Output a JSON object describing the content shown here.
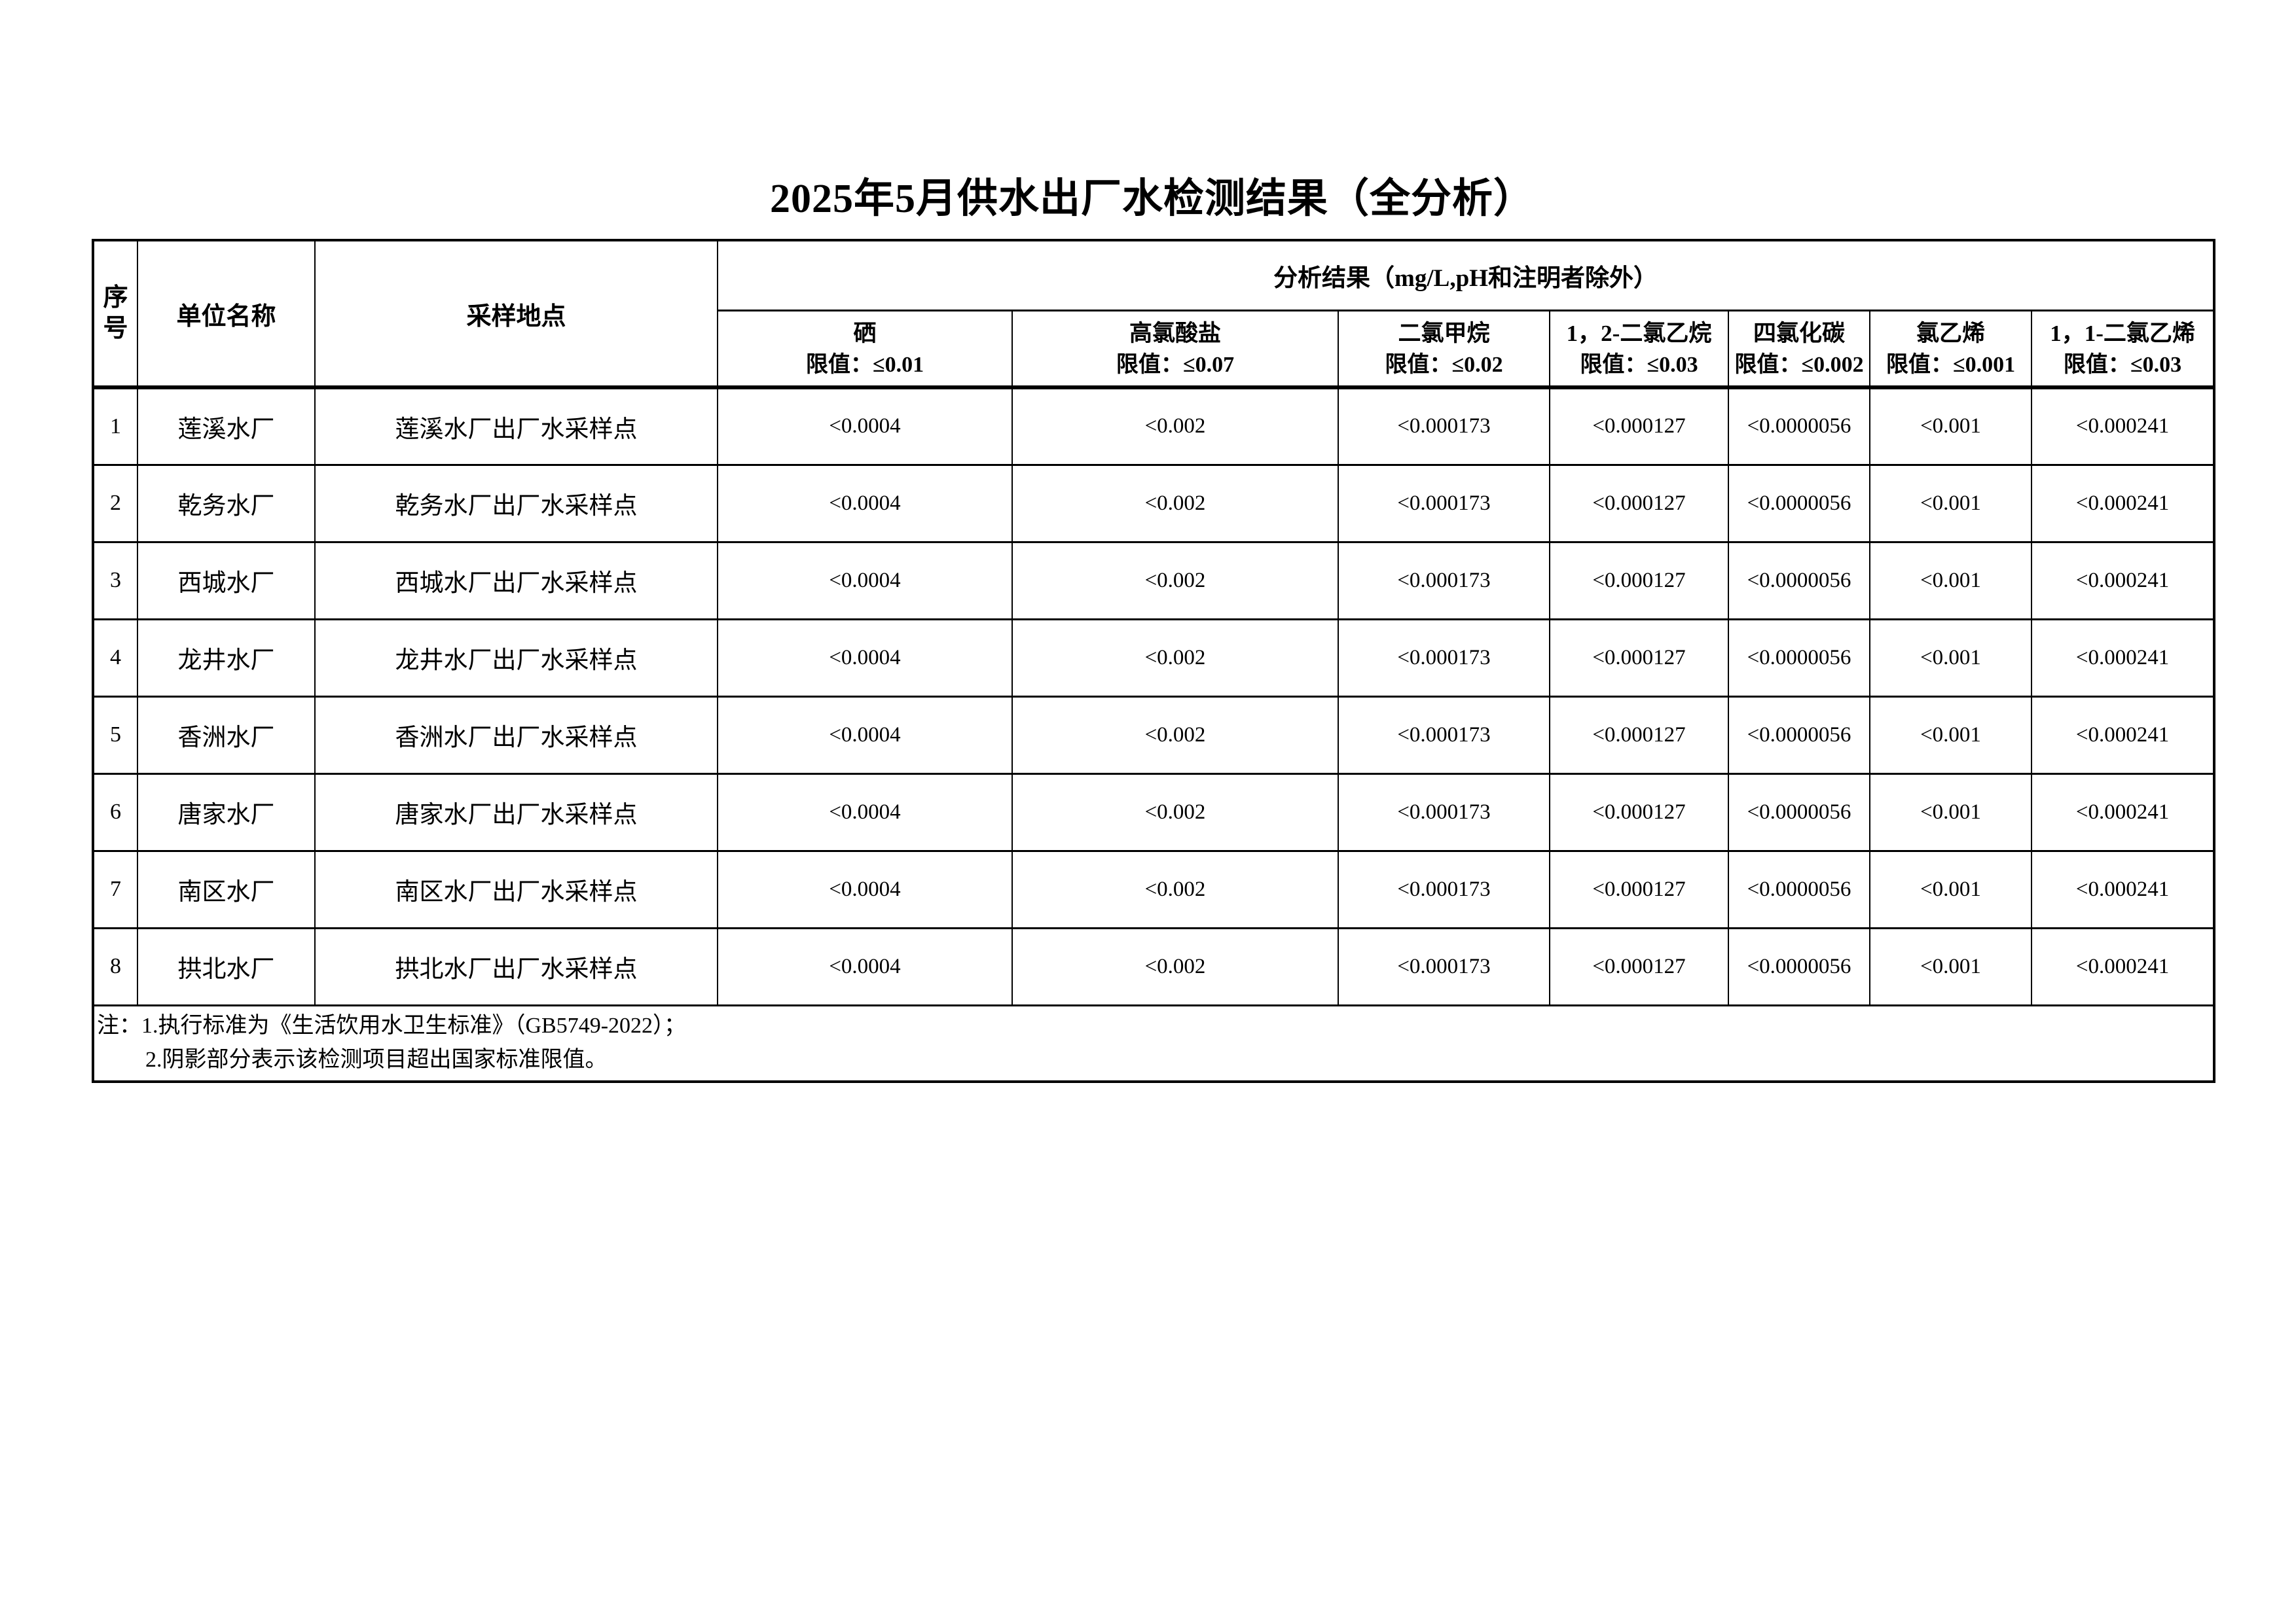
{
  "title": "2025年5月供水出厂水检测结果（全分析）",
  "table": {
    "headers": {
      "index": "序号",
      "unit": "单位名称",
      "location": "采样地点",
      "results_group": "分析结果（mg/L,pH和注明者除外）",
      "analytes": [
        {
          "name": "硒",
          "limit": "限值：≤0.01"
        },
        {
          "name": "高氯酸盐",
          "limit": "限值：≤0.07"
        },
        {
          "name": "二氯甲烷",
          "limit": "限值：≤0.02"
        },
        {
          "name": "1，2-二氯乙烷",
          "limit": "限值：≤0.03"
        },
        {
          "name": "四氯化碳",
          "limit": "限值：≤0.002"
        },
        {
          "name": "氯乙烯",
          "limit": "限值：≤0.001"
        },
        {
          "name": "1，1-二氯乙烯",
          "limit": "限值：≤0.03"
        }
      ]
    },
    "rows": [
      {
        "no": "1",
        "unit": "莲溪水厂",
        "location": "莲溪水厂出厂水采样点",
        "values": [
          "<0.0004",
          "<0.002",
          "<0.000173",
          "<0.000127",
          "<0.0000056",
          "<0.001",
          "<0.000241"
        ]
      },
      {
        "no": "2",
        "unit": "乾务水厂",
        "location": "乾务水厂出厂水采样点",
        "values": [
          "<0.0004",
          "<0.002",
          "<0.000173",
          "<0.000127",
          "<0.0000056",
          "<0.001",
          "<0.000241"
        ]
      },
      {
        "no": "3",
        "unit": "西城水厂",
        "location": "西城水厂出厂水采样点",
        "values": [
          "<0.0004",
          "<0.002",
          "<0.000173",
          "<0.000127",
          "<0.0000056",
          "<0.001",
          "<0.000241"
        ]
      },
      {
        "no": "4",
        "unit": "龙井水厂",
        "location": "龙井水厂出厂水采样点",
        "values": [
          "<0.0004",
          "<0.002",
          "<0.000173",
          "<0.000127",
          "<0.0000056",
          "<0.001",
          "<0.000241"
        ]
      },
      {
        "no": "5",
        "unit": "香洲水厂",
        "location": "香洲水厂出厂水采样点",
        "values": [
          "<0.0004",
          "<0.002",
          "<0.000173",
          "<0.000127",
          "<0.0000056",
          "<0.001",
          "<0.000241"
        ]
      },
      {
        "no": "6",
        "unit": "唐家水厂",
        "location": "唐家水厂出厂水采样点",
        "values": [
          "<0.0004",
          "<0.002",
          "<0.000173",
          "<0.000127",
          "<0.0000056",
          "<0.001",
          "<0.000241"
        ]
      },
      {
        "no": "7",
        "unit": "南区水厂",
        "location": "南区水厂出厂水采样点",
        "values": [
          "<0.0004",
          "<0.002",
          "<0.000173",
          "<0.000127",
          "<0.0000056",
          "<0.001",
          "<0.000241"
        ]
      },
      {
        "no": "8",
        "unit": "拱北水厂",
        "location": "拱北水厂出厂水采样点",
        "values": [
          "<0.0004",
          "<0.002",
          "<0.000173",
          "<0.000127",
          "<0.0000056",
          "<0.001",
          "<0.000241"
        ]
      }
    ],
    "notes": [
      "注：1.执行标准为《生活饮用水卫生标准》（GB5749-2022）；",
      "2.阴影部分表示该检测项目超出国家标准限值。"
    ]
  }
}
